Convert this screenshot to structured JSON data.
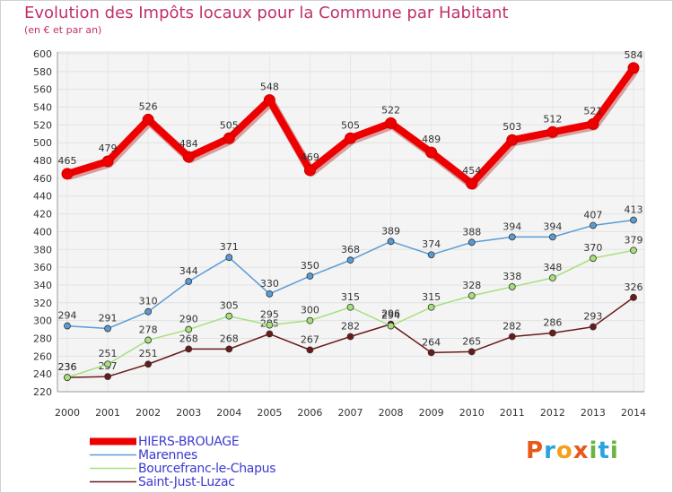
{
  "title": "Evolution des Impôts locaux pour la Commune par Habitant",
  "subtitle": "(en € et par an)",
  "logo": {
    "letters": [
      "P",
      "r",
      "o",
      "x",
      "i",
      "t",
      "i"
    ],
    "colors": [
      "#e8581a",
      "#29a3dd",
      "#f4a018",
      "#e8581a",
      "#6cb33f",
      "#29a3dd",
      "#6cb33f"
    ]
  },
  "chart_data": {
    "type": "line",
    "title": "Evolution des Impôts locaux pour la Commune par Habitant",
    "ylabel": "(en € et par an)",
    "x": [
      "2000",
      "2001",
      "2002",
      "2003",
      "2004",
      "2005",
      "2006",
      "2007",
      "2008",
      "2009",
      "2010",
      "2011",
      "2012",
      "2013",
      "2014"
    ],
    "ylim": [
      220,
      600
    ],
    "yticks": [
      "220",
      "240",
      "260",
      "280",
      "300",
      "320",
      "340",
      "360",
      "380",
      "400",
      "420",
      "440",
      "460",
      "480",
      "500",
      "520",
      "540",
      "560",
      "580",
      "600"
    ],
    "grid": true,
    "series": [
      {
        "name": "HIERS-BROUAGE",
        "color": "#ee0000",
        "bold": true,
        "values": [
          465,
          479,
          526,
          484,
          505,
          548,
          469,
          505,
          522,
          489,
          454,
          503,
          512,
          521,
          584
        ],
        "labels": [
          "465",
          "479",
          "526",
          "484",
          "505",
          "548",
          "469",
          "505",
          "522",
          "489",
          "454",
          "503",
          "512",
          "521",
          "584"
        ]
      },
      {
        "name": "Marennes",
        "color": "#5b9bd5",
        "bold": false,
        "values": [
          294,
          291,
          310,
          344,
          371,
          330,
          350,
          368,
          389,
          374,
          388,
          394,
          394,
          407,
          413
        ],
        "labels": [
          "294",
          "291",
          "310",
          "344",
          "371",
          "330",
          "350",
          "368",
          "389",
          "374",
          "388",
          "394",
          "394",
          "407",
          "413"
        ]
      },
      {
        "name": "Bourcefranc-le-Chapus",
        "color": "#a6e07a",
        "bold": false,
        "values": [
          236,
          251,
          278,
          290,
          305,
          295,
          300,
          315,
          294,
          315,
          328,
          338,
          348,
          370,
          379
        ],
        "labels": [
          "236",
          "251",
          "278",
          "290",
          "305",
          "295",
          "300",
          "315",
          "294",
          "315",
          "328",
          "338",
          "348",
          "370",
          "379"
        ]
      },
      {
        "name": "Saint-Just-Luzac",
        "color": "#6b1a1a",
        "bold": false,
        "values": [
          236,
          237,
          251,
          268,
          268,
          285,
          267,
          282,
          296,
          264,
          265,
          282,
          286,
          293,
          326
        ],
        "labels": [
          "236",
          "237",
          "251",
          "268",
          "268",
          "285",
          "267",
          "282",
          "296",
          "264",
          "265",
          "282",
          "286",
          "293",
          "326"
        ]
      }
    ]
  }
}
